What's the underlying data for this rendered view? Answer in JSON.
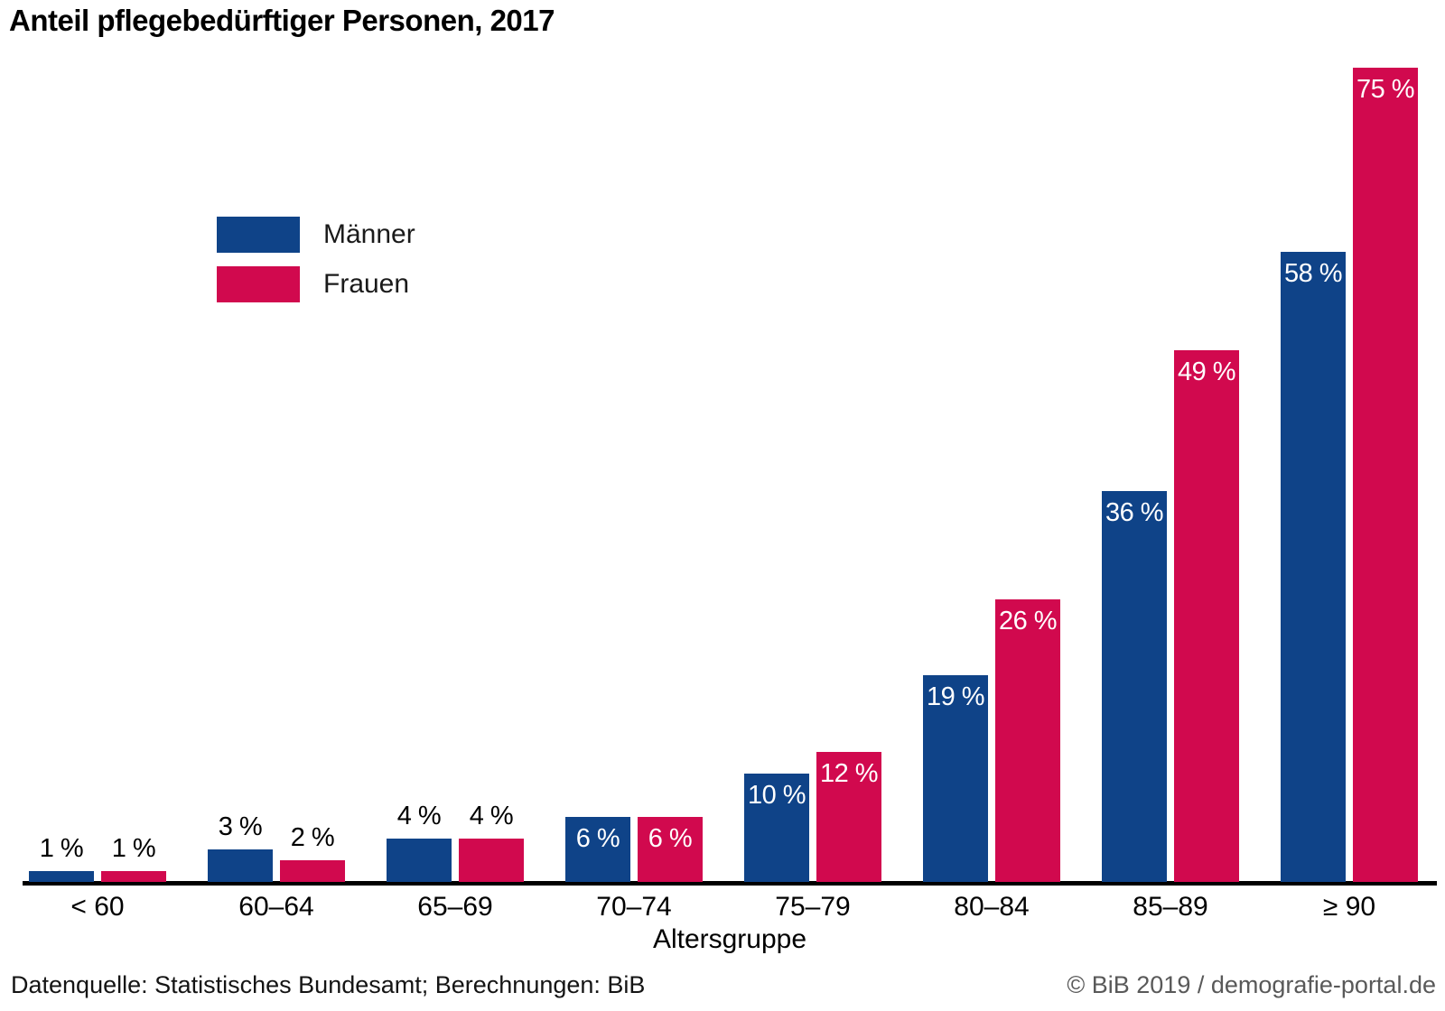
{
  "chart_data": {
    "type": "bar",
    "title": "Anteil pflegebedürftiger Personen, 2017",
    "categories": [
      "< 60",
      "60–64",
      "65–69",
      "70–74",
      "75–79",
      "80–84",
      "85–89",
      "≥ 90"
    ],
    "series": [
      {
        "name": "Männer",
        "color": "#0f4388",
        "values": [
          1,
          3,
          4,
          6,
          10,
          19,
          36,
          58
        ],
        "labels": [
          "1 %",
          "3 %",
          "4 %",
          "6 %",
          "10 %",
          "19 %",
          "36 %",
          "58 %"
        ]
      },
      {
        "name": "Frauen",
        "color": "#d1094e",
        "values": [
          1,
          2,
          4,
          6,
          12,
          26,
          49,
          75
        ],
        "labels": [
          "1 %",
          "2 %",
          "4 %",
          "6 %",
          "12 %",
          "26 %",
          "49 %",
          "75 %"
        ]
      }
    ],
    "xlabel": "Altersgruppe",
    "ylabel": "",
    "ylim": [
      0,
      75
    ],
    "y_axis_shown": false,
    "grid": false,
    "legend_position": "top-left",
    "value_suffix": " %",
    "label_inside_threshold": 6,
    "axis_color": "#000000",
    "label_color_inside": "#ffffff",
    "label_color_outside": "#000000"
  },
  "footer": {
    "source": "Datenquelle: Statistisches Bundesamt; Berechnungen: BiB",
    "credit": "© BiB 2019 / demografie-portal.de"
  }
}
